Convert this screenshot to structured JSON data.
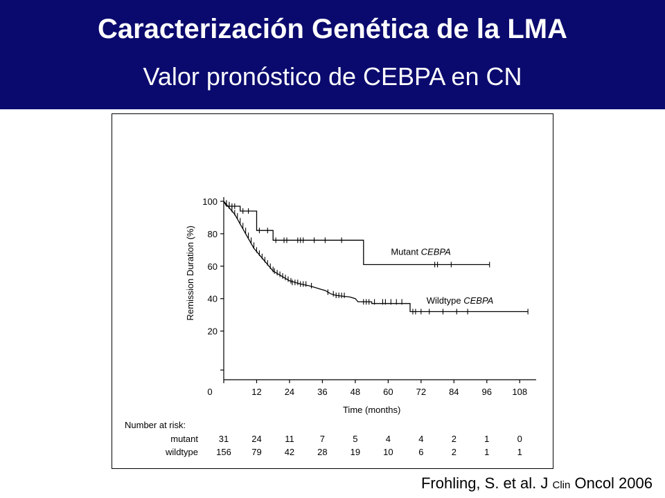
{
  "header": {
    "title": "Caracterización Genética de la LMA",
    "subtitle": "Valor pronóstico de CEBPA en CN",
    "bg_color": "#0a0a6e"
  },
  "citation": {
    "part1": "Frohling, S. et al. J",
    "part2": "Clin",
    "part3": "Oncol 2006"
  },
  "chart_data": {
    "type": "line",
    "xlabel": "Time (months)",
    "ylabel": "Remission Duration (%)",
    "xlim": [
      0,
      114
    ],
    "ylim": [
      -10,
      103
    ],
    "x_ticks": [
      0,
      12,
      24,
      36,
      48,
      60,
      72,
      84,
      96,
      108
    ],
    "y_ticks": [
      20,
      40,
      60,
      80,
      100
    ],
    "grid": false,
    "series": [
      {
        "name": "Mutant CEBPA",
        "label_prefix": "Mutant ",
        "label_italic": "CEBPA",
        "label_at": [
          61,
          67
        ],
        "step": [
          [
            0,
            100
          ],
          [
            1,
            97
          ],
          [
            6,
            97
          ],
          [
            6,
            94
          ],
          [
            12,
            94
          ],
          [
            12,
            82
          ],
          [
            18,
            82
          ],
          [
            18,
            76
          ],
          [
            51,
            76
          ],
          [
            51,
            61
          ],
          [
            97,
            61
          ]
        ],
        "censored": [
          [
            1,
            99
          ],
          [
            2,
            98
          ],
          [
            3,
            97
          ],
          [
            4,
            97
          ],
          [
            7,
            94
          ],
          [
            9,
            94
          ],
          [
            13,
            82
          ],
          [
            16,
            82
          ],
          [
            19,
            76
          ],
          [
            22,
            76
          ],
          [
            23,
            76
          ],
          [
            27,
            76
          ],
          [
            28,
            76
          ],
          [
            29,
            76
          ],
          [
            33,
            76
          ],
          [
            37,
            76
          ],
          [
            43,
            76
          ],
          [
            77,
            61
          ],
          [
            78,
            61
          ],
          [
            83,
            61
          ],
          [
            97,
            61
          ]
        ]
      },
      {
        "name": "Wildtype CEBPA",
        "label_prefix": "Wildtype ",
        "label_italic": "CEBPA",
        "label_at": [
          74,
          37
        ],
        "step": [
          [
            0,
            100
          ],
          [
            1,
            98
          ],
          [
            2,
            96
          ],
          [
            3,
            94
          ],
          [
            4,
            92
          ],
          [
            5,
            89
          ],
          [
            6,
            86
          ],
          [
            7,
            83
          ],
          [
            8,
            80
          ],
          [
            9,
            77
          ],
          [
            10,
            74
          ],
          [
            11,
            71
          ],
          [
            12,
            69
          ],
          [
            13,
            67
          ],
          [
            14,
            65
          ],
          [
            15,
            63
          ],
          [
            16,
            61
          ],
          [
            17,
            59
          ],
          [
            18,
            57
          ],
          [
            19,
            56
          ],
          [
            20,
            55
          ],
          [
            21,
            54
          ],
          [
            22,
            53
          ],
          [
            23,
            52
          ],
          [
            24,
            51
          ],
          [
            26,
            50
          ],
          [
            28,
            49
          ],
          [
            31,
            48
          ],
          [
            33,
            47
          ],
          [
            35,
            46
          ],
          [
            37,
            45
          ],
          [
            39,
            43
          ],
          [
            41,
            42
          ],
          [
            46,
            41
          ],
          [
            48,
            40
          ],
          [
            49,
            38
          ],
          [
            54,
            38
          ],
          [
            54,
            37
          ],
          [
            68,
            37
          ],
          [
            68,
            32
          ],
          [
            111,
            32
          ]
        ],
        "censored": [
          [
            1,
            99
          ],
          [
            2,
            97
          ],
          [
            3,
            95
          ],
          [
            4,
            93
          ],
          [
            5,
            91
          ],
          [
            6,
            88
          ],
          [
            7,
            85
          ],
          [
            8,
            82
          ],
          [
            9,
            79
          ],
          [
            10,
            76
          ],
          [
            11,
            73
          ],
          [
            12,
            70
          ],
          [
            13,
            68
          ],
          [
            14,
            66
          ],
          [
            15,
            64
          ],
          [
            16,
            62
          ],
          [
            17,
            60
          ],
          [
            18,
            58
          ],
          [
            18.5,
            57
          ],
          [
            19.5,
            56
          ],
          [
            20.5,
            55
          ],
          [
            21.5,
            54
          ],
          [
            22.5,
            53
          ],
          [
            23.5,
            52
          ],
          [
            24.5,
            51
          ],
          [
            25,
            50
          ],
          [
            26,
            50
          ],
          [
            27,
            50
          ],
          [
            28,
            49
          ],
          [
            29,
            49
          ],
          [
            30,
            49
          ],
          [
            32,
            48
          ],
          [
            38,
            44
          ],
          [
            40,
            43
          ],
          [
            41,
            42
          ],
          [
            42,
            42
          ],
          [
            43,
            42
          ],
          [
            44,
            42
          ],
          [
            51,
            38
          ],
          [
            52,
            38
          ],
          [
            53,
            38
          ],
          [
            55,
            38
          ],
          [
            58,
            38
          ],
          [
            59,
            38
          ],
          [
            61,
            38
          ],
          [
            63,
            38
          ],
          [
            65,
            38
          ],
          [
            69,
            32
          ],
          [
            70,
            32
          ],
          [
            72,
            32
          ],
          [
            75,
            32
          ],
          [
            80,
            32
          ],
          [
            85,
            32
          ],
          [
            89,
            32
          ],
          [
            111,
            32
          ]
        ]
      }
    ],
    "number_at_risk": {
      "title": "Number at risk:",
      "rows": [
        {
          "label": "mutant",
          "values": [
            "31",
            "24",
            "11",
            "7",
            "5",
            "4",
            "4",
            "2",
            "1",
            "0"
          ]
        },
        {
          "label": "wildtype",
          "values": [
            "156",
            "79",
            "42",
            "28",
            "19",
            "10",
            "6",
            "2",
            "1",
            "1"
          ]
        }
      ]
    }
  }
}
